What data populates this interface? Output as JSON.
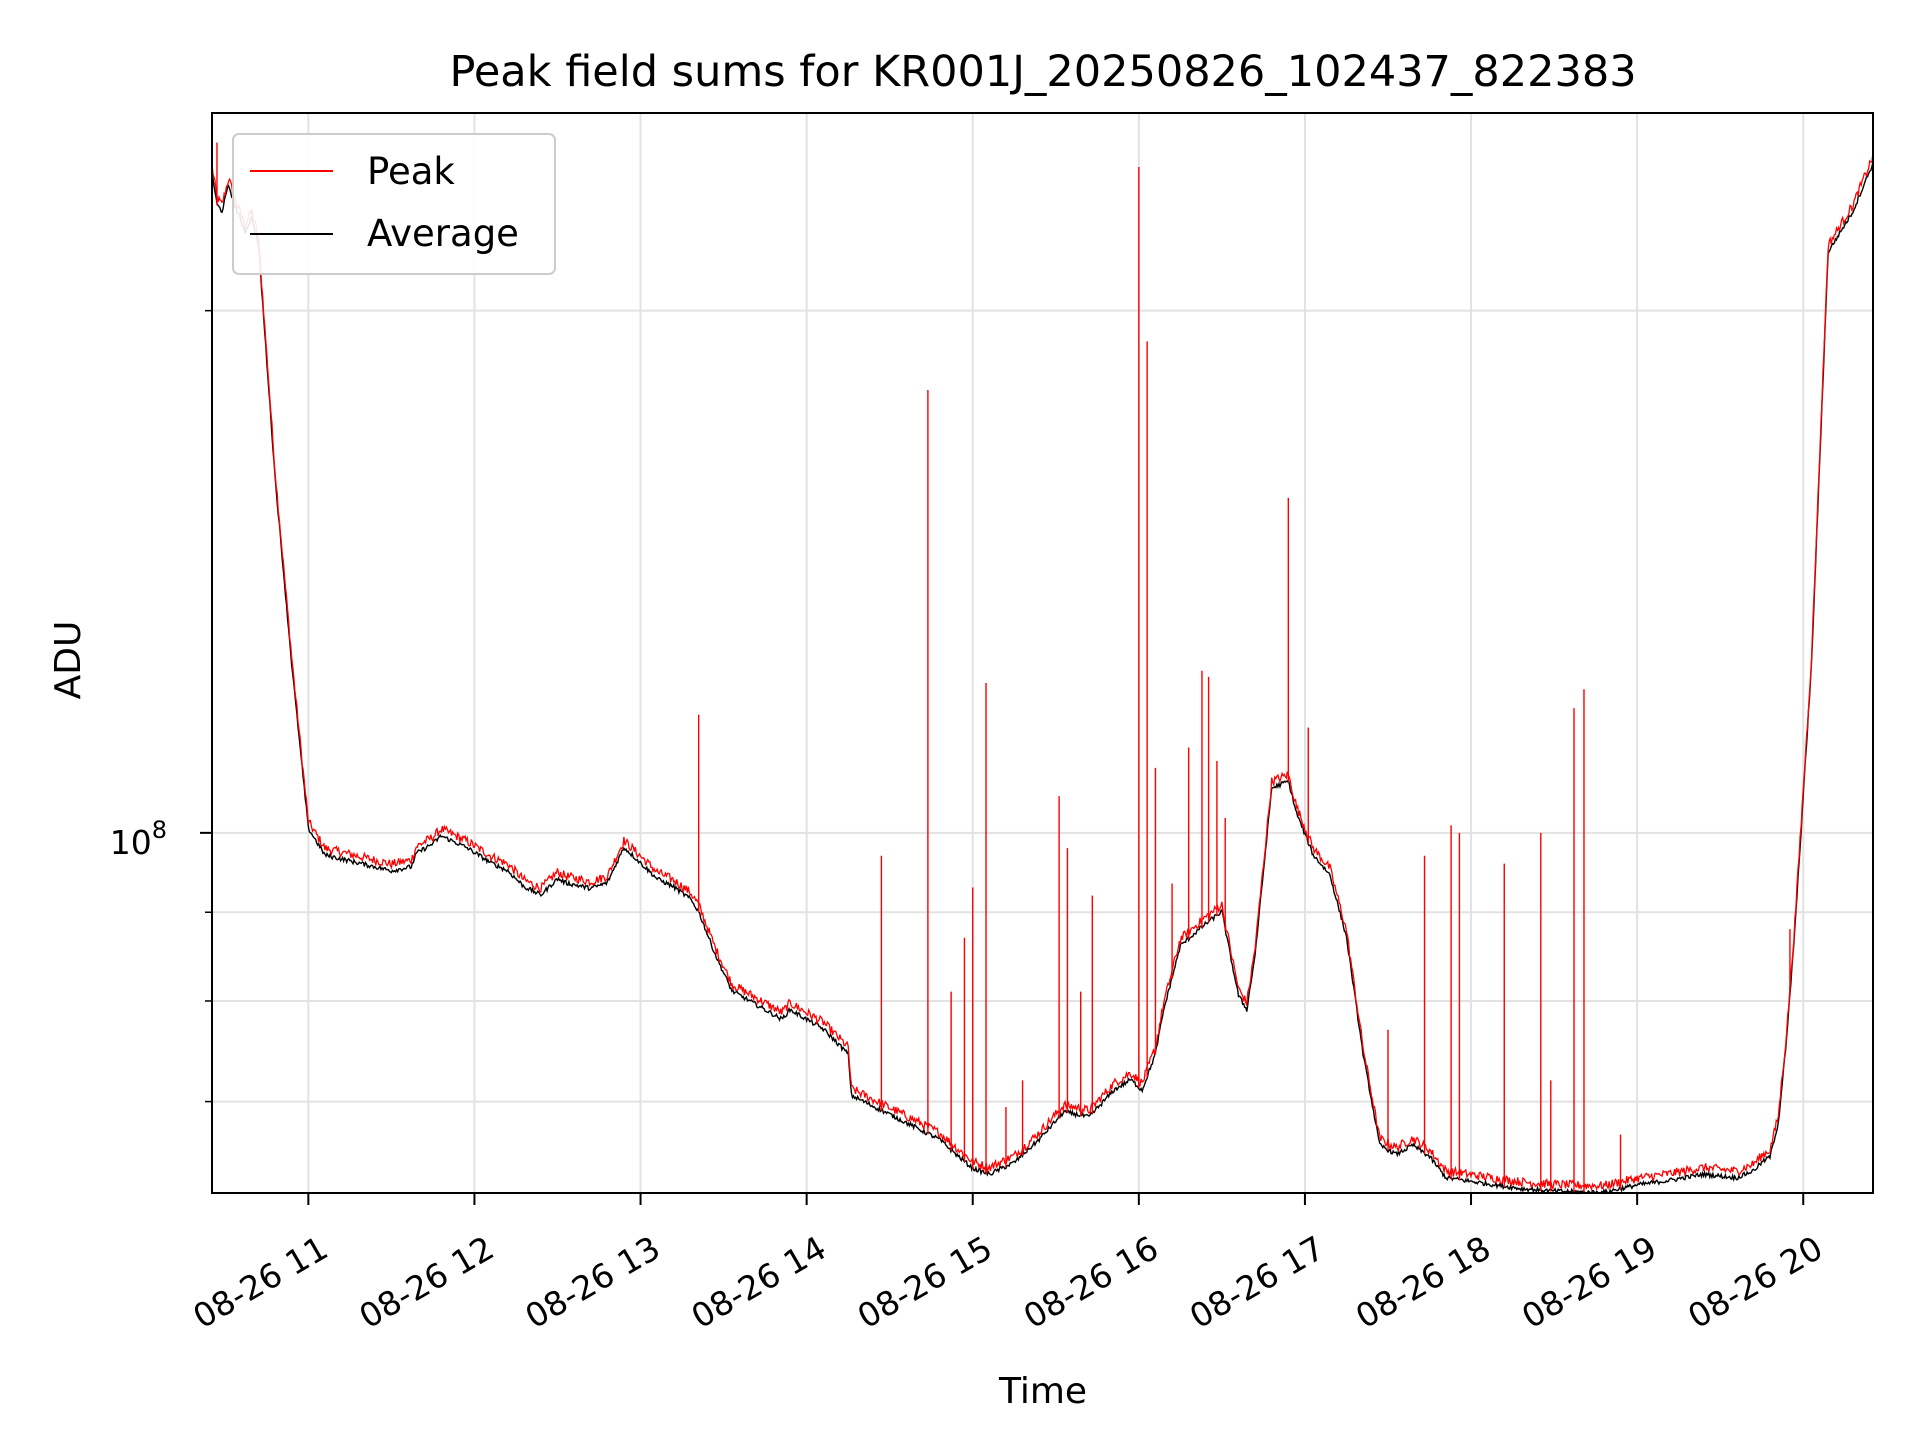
{
  "chart_data": {
    "type": "line",
    "title": "Peak field sums for KR001J_20250826_102437_822383",
    "xlabel": "Time",
    "ylabel": "ADU",
    "x_ticks": [
      "08-26 11",
      "08-26 12",
      "08-26 13",
      "08-26 14",
      "08-26 15",
      "08-26 16",
      "08-26 17",
      "08-26 18",
      "08-26 19",
      "08-26 20"
    ],
    "y_major_tick": "10",
    "y_major_tick_exp": "8",
    "y_scale": "log",
    "xlim": [
      10.42,
      20.42
    ],
    "ylim": [
      62000000,
      260000000
    ],
    "grid": true,
    "legend_position": "upper-left",
    "colors": {
      "peak": "#ff0000",
      "average": "#000000"
    },
    "average_x": [
      10.42,
      10.45,
      10.48,
      10.52,
      10.57,
      10.62,
      10.66,
      10.7,
      10.8,
      10.9,
      10.95,
      11.0,
      11.1,
      11.3,
      11.5,
      11.62,
      11.65,
      11.75,
      11.8,
      11.95,
      12.1,
      12.2,
      12.3,
      12.4,
      12.5,
      12.55,
      12.7,
      12.8,
      12.9,
      12.95,
      13.1,
      13.2,
      13.3,
      13.35,
      13.45,
      13.55,
      13.7,
      13.85,
      13.9,
      14.0,
      14.1,
      14.25,
      14.27,
      14.4,
      14.6,
      14.8,
      14.9,
      15.0,
      15.1,
      15.25,
      15.4,
      15.55,
      15.7,
      15.85,
      15.95,
      16.02,
      16.1,
      16.15,
      16.25,
      16.4,
      16.5,
      16.55,
      16.6,
      16.65,
      16.7,
      16.8,
      16.9,
      16.95,
      17.05,
      17.15,
      17.25,
      17.35,
      17.45,
      17.55,
      17.65,
      17.75,
      17.85,
      17.95,
      18.1,
      18.3,
      18.5,
      18.7,
      18.8,
      19.0,
      19.2,
      19.4,
      19.6,
      19.7,
      19.75,
      19.8,
      19.85,
      19.9,
      19.95,
      20.05,
      20.15,
      20.3,
      20.38,
      20.42
    ],
    "average_y": [
      240000000,
      230000000,
      228000000,
      236000000,
      228000000,
      222000000,
      226000000,
      218000000,
      160000000,
      125000000,
      112000000,
      100500000,
      97000000,
      96000000,
      95000000,
      95500000,
      97200000,
      98500000,
      99500000,
      98000000,
      96000000,
      95000000,
      93000000,
      92000000,
      94000000,
      93500000,
      92800000,
      93500000,
      98000000,
      97000000,
      94000000,
      93000000,
      91500000,
      90000000,
      85000000,
      81000000,
      79500000,
      78000000,
      79000000,
      78000000,
      77000000,
      74500000,
      70500000,
      69500000,
      68000000,
      66500000,
      65200000,
      64000000,
      63500000,
      64500000,
      66500000,
      69000000,
      68500000,
      71000000,
      72000000,
      71000000,
      74500000,
      79000000,
      86000000,
      88500000,
      90000000,
      85000000,
      80500000,
      79000000,
      85000000,
      106000000,
      107000000,
      102500000,
      97000000,
      94500000,
      87000000,
      74500000,
      66000000,
      65200000,
      66000000,
      65000000,
      63200000,
      63000000,
      62700000,
      62300000,
      62100000,
      62000000,
      62000000,
      62600000,
      63000000,
      63500000,
      63200000,
      63800000,
      64500000,
      65000000,
      68000000,
      76000000,
      88000000,
      125000000,
      216000000,
      228000000,
      238000000,
      243000000
    ],
    "peak_spikes": [
      {
        "x": 10.45,
        "y": 250000000
      },
      {
        "x": 13.35,
        "y": 117000000
      },
      {
        "x": 14.45,
        "y": 97000000
      },
      {
        "x": 14.73,
        "y": 180000000
      },
      {
        "x": 14.87,
        "y": 81000000
      },
      {
        "x": 14.95,
        "y": 87000000
      },
      {
        "x": 15.0,
        "y": 93000000
      },
      {
        "x": 15.08,
        "y": 122000000
      },
      {
        "x": 15.2,
        "y": 69500000
      },
      {
        "x": 15.3,
        "y": 72000000
      },
      {
        "x": 15.52,
        "y": 105000000
      },
      {
        "x": 15.57,
        "y": 98000000
      },
      {
        "x": 15.65,
        "y": 81000000
      },
      {
        "x": 15.72,
        "y": 92000000
      },
      {
        "x": 16.0,
        "y": 242000000
      },
      {
        "x": 16.05,
        "y": 192000000
      },
      {
        "x": 16.1,
        "y": 109000000
      },
      {
        "x": 16.2,
        "y": 93500000
      },
      {
        "x": 16.3,
        "y": 112000000
      },
      {
        "x": 16.38,
        "y": 124000000
      },
      {
        "x": 16.42,
        "y": 123000000
      },
      {
        "x": 16.47,
        "y": 110000000
      },
      {
        "x": 16.52,
        "y": 102000000
      },
      {
        "x": 16.9,
        "y": 156000000
      },
      {
        "x": 17.02,
        "y": 115000000
      },
      {
        "x": 17.5,
        "y": 77000000
      },
      {
        "x": 17.72,
        "y": 97000000
      },
      {
        "x": 17.88,
        "y": 101000000
      },
      {
        "x": 17.93,
        "y": 100000000
      },
      {
        "x": 18.2,
        "y": 96000000
      },
      {
        "x": 18.42,
        "y": 100000000
      },
      {
        "x": 18.48,
        "y": 72000000
      },
      {
        "x": 18.62,
        "y": 118000000
      },
      {
        "x": 18.68,
        "y": 121000000
      },
      {
        "x": 18.9,
        "y": 67000000
      },
      {
        "x": 19.92,
        "y": 88000000
      }
    ]
  },
  "legend": [
    {
      "label": "Peak",
      "color": "#ff0000"
    },
    {
      "label": "Average",
      "color": "#000000"
    }
  ]
}
